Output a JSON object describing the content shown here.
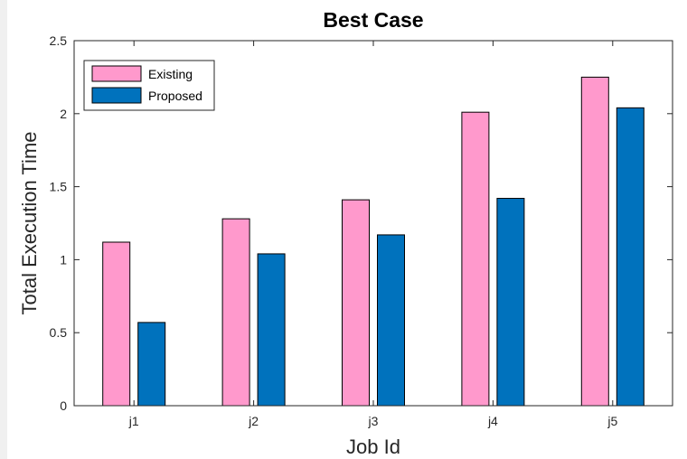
{
  "chart_data": {
    "type": "bar",
    "title": "Best Case",
    "xlabel": "Job Id",
    "ylabel": "Total Execution Time",
    "categories": [
      "j1",
      "j2",
      "j3",
      "j4",
      "j5"
    ],
    "series": [
      {
        "name": "Existing",
        "values": [
          1.12,
          1.28,
          1.41,
          2.01,
          2.25
        ],
        "color": "#ff99cc"
      },
      {
        "name": "Proposed",
        "values": [
          0.57,
          1.04,
          1.17,
          1.42,
          2.04
        ],
        "color": "#0072bd"
      }
    ],
    "ylim": [
      0,
      2.5
    ],
    "yticks": [
      0,
      0.5,
      1,
      1.5,
      2,
      2.5
    ],
    "ytick_labels": [
      "0",
      "0.5",
      "1",
      "1.5",
      "2",
      "2.5"
    ],
    "grid": false,
    "legend_position": "top-left"
  }
}
